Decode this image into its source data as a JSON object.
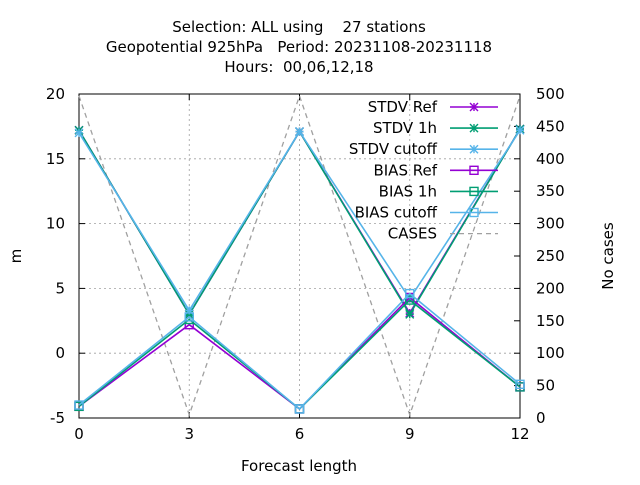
{
  "chart_data": {
    "type": "line",
    "title_lines": [
      "Selection: ALL using    27 stations",
      "Geopotential 925hPa   Period: 20231108-20231118",
      "Hours:  00,06,12,18"
    ],
    "xlabel": "Forecast length",
    "ylabel": "m",
    "y2label": "No cases",
    "x": [
      0,
      3,
      6,
      9,
      12
    ],
    "xlim": [
      0,
      12
    ],
    "ylim": [
      -5,
      20
    ],
    "y2lim": [
      0,
      500
    ],
    "x_ticks": [
      0,
      3,
      6,
      9,
      12
    ],
    "y_ticks": [
      -5,
      0,
      5,
      10,
      15,
      20
    ],
    "y2_ticks": [
      0,
      50,
      100,
      150,
      200,
      250,
      300,
      350,
      400,
      450,
      500
    ],
    "grid": true,
    "legend_position": "top-right",
    "series": [
      {
        "name": "STDV Ref",
        "axis": "y1",
        "marker": "x-star",
        "color": "#9400d3",
        "values": [
          17.2,
          3.0,
          17.1,
          3.1,
          17.3
        ]
      },
      {
        "name": "STDV 1h",
        "axis": "y1",
        "marker": "x-star",
        "color": "#009e73",
        "values": [
          17.2,
          3.0,
          17.1,
          3.0,
          17.3
        ]
      },
      {
        "name": "STDV cutoff",
        "axis": "y1",
        "marker": "x-star",
        "color": "#56b4e9",
        "values": [
          17.0,
          3.3,
          17.1,
          4.2,
          17.2
        ]
      },
      {
        "name": "BIAS Ref",
        "axis": "y1",
        "marker": "square",
        "color": "#9400d3",
        "values": [
          -4.1,
          2.2,
          -4.3,
          4.3,
          -2.6
        ]
      },
      {
        "name": "BIAS 1h",
        "axis": "y1",
        "marker": "square",
        "color": "#009e73",
        "values": [
          -4.1,
          2.6,
          -4.3,
          4.1,
          -2.6
        ]
      },
      {
        "name": "BIAS cutoff",
        "axis": "y1",
        "marker": "square",
        "color": "#56b4e9",
        "values": [
          -4.0,
          2.8,
          -4.3,
          4.6,
          -2.4
        ]
      },
      {
        "name": "CASES",
        "axis": "y2",
        "marker": "none",
        "dashed": true,
        "color": "#a0a0a0",
        "values": [
          497,
          5,
          497,
          5,
          497
        ]
      }
    ]
  }
}
